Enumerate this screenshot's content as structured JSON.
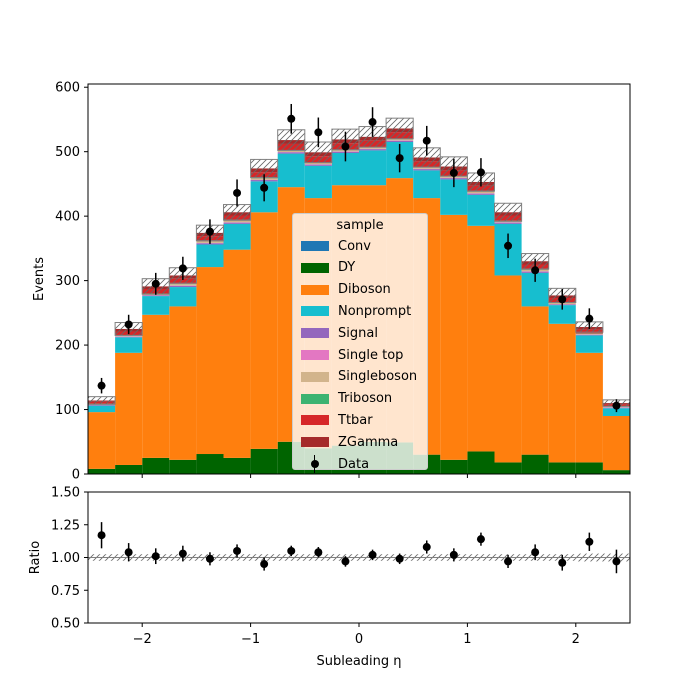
{
  "chart_data": [
    {
      "type": "bar",
      "stacked": true,
      "bin_edges": [
        -2.5,
        -2.25,
        -2.0,
        -1.75,
        -1.5,
        -1.25,
        -1.0,
        -0.75,
        -0.5,
        -0.25,
        0.0,
        0.25,
        0.5,
        0.75,
        1.0,
        1.25,
        1.5,
        1.75,
        2.0,
        2.25,
        2.5
      ],
      "ylabel": "Events",
      "xlim": [
        -2.5,
        2.5
      ],
      "ylim": [
        0,
        605
      ],
      "yticks": [
        0,
        100,
        200,
        300,
        400,
        500,
        600
      ],
      "series": [
        {
          "name": "Conv",
          "color": "#1f77b4",
          "values": [
            0,
            0,
            0,
            0,
            0,
            0,
            0,
            0,
            0,
            0,
            0,
            0,
            0,
            0,
            0,
            0,
            0,
            0,
            0,
            0
          ]
        },
        {
          "name": "DY",
          "color": "#006400",
          "values": [
            8,
            14,
            25,
            22,
            31,
            25,
            39,
            50,
            40,
            44,
            50,
            49,
            30,
            22,
            35,
            18,
            30,
            18,
            18,
            6
          ]
        },
        {
          "name": "Diboson",
          "color": "#ff7f0e",
          "values": [
            88,
            174,
            222,
            238,
            290,
            323,
            367,
            395,
            388,
            404,
            398,
            410,
            398,
            380,
            350,
            290,
            230,
            215,
            170,
            84
          ]
        },
        {
          "name": "Nonprompt",
          "color": "#17becf",
          "values": [
            10,
            24,
            29,
            30,
            35,
            40,
            48,
            52,
            50,
            50,
            54,
            56,
            43,
            55,
            48,
            80,
            52,
            29,
            27,
            12
          ]
        },
        {
          "name": "Signal",
          "color": "#9467bd",
          "values": [
            1,
            1,
            1,
            2,
            2,
            2,
            2,
            2,
            2,
            2,
            2,
            2,
            2,
            2,
            2,
            2,
            2,
            1,
            1,
            1
          ]
        },
        {
          "name": "Single top",
          "color": "#e377c2",
          "values": [
            0.5,
            0.5,
            0.5,
            0.5,
            0.5,
            0.5,
            0.5,
            0.5,
            0.5,
            0.5,
            0.5,
            0.5,
            0.5,
            0.5,
            0.5,
            0.5,
            0.5,
            0.5,
            0.5,
            0.5
          ]
        },
        {
          "name": "Singleboson",
          "color": "#d2b48c",
          "values": [
            1,
            1,
            2,
            2,
            2,
            2,
            2,
            2,
            2,
            2,
            2,
            2,
            2,
            2,
            2,
            2,
            2,
            2,
            1,
            1
          ]
        },
        {
          "name": "Triboson",
          "color": "#3cb371",
          "values": [
            0.5,
            0.5,
            0.5,
            0.5,
            0.5,
            0.5,
            0.5,
            0.5,
            0.5,
            0.5,
            0.5,
            0.5,
            0.5,
            0.5,
            0.5,
            0.5,
            0.5,
            0.5,
            0.5,
            0.5
          ]
        },
        {
          "name": "Ttbar",
          "color": "#d62728",
          "values": [
            3,
            6,
            7,
            8,
            8,
            8,
            9,
            10,
            10,
            10,
            10,
            10,
            9,
            9,
            9,
            8,
            8,
            7,
            6,
            3
          ]
        },
        {
          "name": "ZGamma",
          "color": "#a52a2a",
          "values": [
            2,
            4,
            4,
            5,
            5,
            5,
            6,
            6,
            6,
            6,
            6,
            6,
            6,
            6,
            6,
            5,
            5,
            4,
            4,
            2
          ]
        }
      ],
      "uncertainty": [
        6,
        10,
        12,
        12,
        12,
        12,
        14,
        16,
        16,
        16,
        16,
        16,
        15,
        15,
        14,
        14,
        12,
        11,
        8,
        5
      ],
      "data": {
        "name": "Data",
        "x": [
          -2.375,
          -2.125,
          -1.875,
          -1.625,
          -1.375,
          -1.125,
          -0.875,
          -0.625,
          -0.375,
          -0.125,
          0.125,
          0.375,
          0.625,
          0.875,
          1.125,
          1.375,
          1.625,
          1.875,
          2.125,
          2.375
        ],
        "y": [
          137,
          232,
          295,
          319,
          376,
          436,
          444,
          551,
          530,
          508,
          546,
          490,
          517,
          467,
          468,
          354,
          316,
          271,
          241,
          106
        ],
        "yerr": [
          12,
          15,
          17,
          18,
          19,
          21,
          21,
          23,
          23,
          23,
          23,
          22,
          23,
          22,
          22,
          19,
          18,
          16,
          16,
          10
        ]
      },
      "legend": {
        "title": "sample",
        "position": "center"
      }
    },
    {
      "type": "scatter",
      "xlabel": "Subleading η",
      "ylabel": "Ratio",
      "xlim": [
        -2.5,
        2.5
      ],
      "ylim": [
        0.5,
        1.5
      ],
      "xticks": [
        -2,
        -1,
        0,
        1,
        2
      ],
      "yticks": [
        0.5,
        0.75,
        1.0,
        1.25,
        1.5
      ],
      "x": [
        -2.375,
        -2.125,
        -1.875,
        -1.625,
        -1.375,
        -1.125,
        -0.875,
        -0.625,
        -0.375,
        -0.125,
        0.125,
        0.375,
        0.625,
        0.875,
        1.125,
        1.375,
        1.625,
        1.875,
        2.125,
        2.375
      ],
      "y": [
        1.17,
        1.04,
        1.01,
        1.03,
        0.99,
        1.05,
        0.95,
        1.05,
        1.04,
        0.97,
        1.02,
        0.99,
        1.08,
        1.02,
        1.14,
        0.97,
        1.04,
        0.96,
        1.12,
        0.97
      ],
      "yerr": [
        0.1,
        0.07,
        0.06,
        0.06,
        0.05,
        0.05,
        0.05,
        0.04,
        0.04,
        0.04,
        0.04,
        0.04,
        0.05,
        0.05,
        0.05,
        0.05,
        0.06,
        0.06,
        0.07,
        0.09
      ],
      "band_halfwidth": [
        0.025,
        0.025,
        0.025,
        0.025,
        0.025,
        0.025,
        0.025,
        0.025,
        0.025,
        0.025,
        0.025,
        0.025,
        0.025,
        0.025,
        0.025,
        0.025,
        0.025,
        0.025,
        0.03,
        0.03
      ]
    }
  ]
}
